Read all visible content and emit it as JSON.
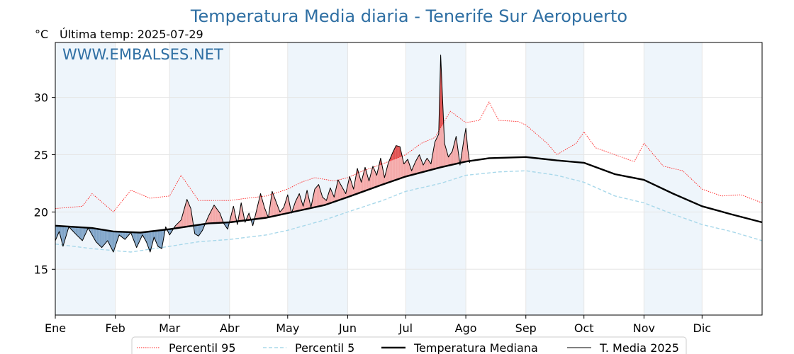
{
  "chart_data": {
    "type": "line",
    "title": "Temperatura Media diaria - Tenerife Sur Aeropuerto",
    "unit": "°C",
    "subtitle": "Última temp: 2025-07-29",
    "watermark": "WWW.EMBALSES.NET",
    "x_ticks": [
      "Ene",
      "Feb",
      "Mar",
      "Abr",
      "May",
      "Jun",
      "Jul",
      "Ago",
      "Sep",
      "Oct",
      "Nov",
      "Dic"
    ],
    "x_tick_days": [
      1,
      32,
      60,
      91,
      121,
      152,
      182,
      213,
      244,
      274,
      305,
      335
    ],
    "y_ticks": [
      15,
      20,
      25,
      30
    ],
    "ylim": [
      11,
      34.8
    ],
    "xlim": [
      1,
      366
    ],
    "grid": true,
    "legend_position": "bottom-center",
    "colors": {
      "p95": "#ff2020",
      "p5": "#a8d8ea",
      "median": "#000000",
      "media2025": "#000000",
      "above": "#f4a8a8",
      "above_strong": "#e05050",
      "below": "#7fa4c8",
      "below_strong": "#1f4e85",
      "band": "#eef5fb",
      "title": "#2f6fa3"
    },
    "series": [
      {
        "key": "p95",
        "name": "Percentil 95",
        "style": "dotted-red",
        "points": [
          [
            1,
            20.3
          ],
          [
            15,
            20.5
          ],
          [
            20,
            21.6
          ],
          [
            31,
            20.0
          ],
          [
            40,
            21.9
          ],
          [
            50,
            21.2
          ],
          [
            60,
            21.4
          ],
          [
            66,
            23.2
          ],
          [
            75,
            21.0
          ],
          [
            91,
            21.0
          ],
          [
            100,
            21.2
          ],
          [
            110,
            21.4
          ],
          [
            121,
            22.0
          ],
          [
            128,
            22.6
          ],
          [
            135,
            23.0
          ],
          [
            145,
            22.7
          ],
          [
            152,
            23.0
          ],
          [
            160,
            23.6
          ],
          [
            170,
            24.2
          ],
          [
            182,
            25.0
          ],
          [
            190,
            26.0
          ],
          [
            197,
            26.5
          ],
          [
            205,
            28.8
          ],
          [
            213,
            27.8
          ],
          [
            220,
            28.0
          ],
          [
            225,
            29.6
          ],
          [
            230,
            28.0
          ],
          [
            240,
            27.9
          ],
          [
            244,
            27.6
          ],
          [
            255,
            26.0
          ],
          [
            260,
            25.0
          ],
          [
            270,
            26.0
          ],
          [
            274,
            27.0
          ],
          [
            280,
            25.6
          ],
          [
            290,
            25.0
          ],
          [
            300,
            24.4
          ],
          [
            305,
            26.0
          ],
          [
            315,
            24.0
          ],
          [
            325,
            23.6
          ],
          [
            335,
            22.0
          ],
          [
            345,
            21.4
          ],
          [
            355,
            21.5
          ],
          [
            366,
            20.8
          ]
        ]
      },
      {
        "key": "p5",
        "name": "Percentil 5",
        "style": "dashed-lightblue",
        "points": [
          [
            1,
            17.2
          ],
          [
            20,
            16.8
          ],
          [
            40,
            16.5
          ],
          [
            60,
            17.0
          ],
          [
            75,
            17.4
          ],
          [
            91,
            17.6
          ],
          [
            110,
            18.0
          ],
          [
            121,
            18.4
          ],
          [
            140,
            19.3
          ],
          [
            152,
            20.0
          ],
          [
            170,
            21.0
          ],
          [
            182,
            21.8
          ],
          [
            200,
            22.5
          ],
          [
            213,
            23.2
          ],
          [
            230,
            23.5
          ],
          [
            244,
            23.6
          ],
          [
            260,
            23.2
          ],
          [
            274,
            22.6
          ],
          [
            290,
            21.4
          ],
          [
            305,
            20.8
          ],
          [
            320,
            19.8
          ],
          [
            335,
            18.9
          ],
          [
            350,
            18.3
          ],
          [
            366,
            17.5
          ]
        ]
      },
      {
        "key": "median",
        "name": "Temperatura Mediana",
        "style": "solid-thick-black",
        "points": [
          [
            1,
            18.8
          ],
          [
            20,
            18.6
          ],
          [
            31,
            18.3
          ],
          [
            45,
            18.2
          ],
          [
            60,
            18.5
          ],
          [
            80,
            19.0
          ],
          [
            91,
            19.1
          ],
          [
            110,
            19.5
          ],
          [
            121,
            19.9
          ],
          [
            140,
            20.6
          ],
          [
            152,
            21.3
          ],
          [
            170,
            22.4
          ],
          [
            182,
            23.1
          ],
          [
            200,
            23.9
          ],
          [
            213,
            24.4
          ],
          [
            225,
            24.7
          ],
          [
            244,
            24.8
          ],
          [
            260,
            24.5
          ],
          [
            274,
            24.3
          ],
          [
            290,
            23.3
          ],
          [
            305,
            22.8
          ],
          [
            320,
            21.6
          ],
          [
            335,
            20.5
          ],
          [
            350,
            19.8
          ],
          [
            366,
            19.1
          ]
        ]
      },
      {
        "key": "media2025",
        "name": "T. Media 2025",
        "style": "solid-thin-black",
        "points": [
          [
            1,
            17.5
          ],
          [
            3,
            18.3
          ],
          [
            5,
            17.0
          ],
          [
            8,
            18.7
          ],
          [
            12,
            18.0
          ],
          [
            15,
            17.5
          ],
          [
            18,
            18.6
          ],
          [
            22,
            17.4
          ],
          [
            25,
            16.9
          ],
          [
            28,
            17.5
          ],
          [
            31,
            16.5
          ],
          [
            34,
            18.0
          ],
          [
            37,
            17.6
          ],
          [
            40,
            18.2
          ],
          [
            43,
            16.9
          ],
          [
            46,
            18.0
          ],
          [
            48,
            17.4
          ],
          [
            50,
            16.5
          ],
          [
            52,
            17.8
          ],
          [
            54,
            17.0
          ],
          [
            56,
            16.8
          ],
          [
            58,
            18.7
          ],
          [
            60,
            18.0
          ],
          [
            63,
            18.8
          ],
          [
            66,
            19.3
          ],
          [
            69,
            21.1
          ],
          [
            71,
            20.3
          ],
          [
            73,
            18.1
          ],
          [
            75,
            17.9
          ],
          [
            77,
            18.4
          ],
          [
            80,
            19.6
          ],
          [
            83,
            20.6
          ],
          [
            86,
            19.9
          ],
          [
            88,
            19.0
          ],
          [
            90,
            18.5
          ],
          [
            93,
            20.5
          ],
          [
            95,
            18.9
          ],
          [
            97,
            20.8
          ],
          [
            99,
            19.1
          ],
          [
            101,
            19.9
          ],
          [
            103,
            18.8
          ],
          [
            105,
            20.2
          ],
          [
            107,
            21.6
          ],
          [
            109,
            20.4
          ],
          [
            111,
            19.5
          ],
          [
            113,
            21.8
          ],
          [
            115,
            20.9
          ],
          [
            117,
            20.0
          ],
          [
            119,
            20.4
          ],
          [
            121,
            21.5
          ],
          [
            123,
            19.9
          ],
          [
            125,
            20.9
          ],
          [
            127,
            21.6
          ],
          [
            129,
            20.5
          ],
          [
            131,
            21.9
          ],
          [
            133,
            20.4
          ],
          [
            135,
            22.0
          ],
          [
            137,
            22.4
          ],
          [
            139,
            21.3
          ],
          [
            141,
            21.0
          ],
          [
            143,
            22.1
          ],
          [
            145,
            21.3
          ],
          [
            147,
            22.8
          ],
          [
            149,
            22.2
          ],
          [
            151,
            21.6
          ],
          [
            153,
            23.1
          ],
          [
            155,
            22.0
          ],
          [
            157,
            23.8
          ],
          [
            159,
            22.6
          ],
          [
            161,
            23.9
          ],
          [
            163,
            22.7
          ],
          [
            165,
            24.0
          ],
          [
            167,
            23.2
          ],
          [
            169,
            24.7
          ],
          [
            171,
            23.0
          ],
          [
            173,
            24.3
          ],
          [
            175,
            25.1
          ],
          [
            177,
            25.8
          ],
          [
            179,
            25.7
          ],
          [
            181,
            24.2
          ],
          [
            183,
            24.6
          ],
          [
            185,
            23.6
          ],
          [
            187,
            24.4
          ],
          [
            189,
            25.0
          ],
          [
            191,
            24.1
          ],
          [
            193,
            24.7
          ],
          [
            195,
            24.2
          ],
          [
            197,
            26.1
          ],
          [
            199,
            26.8
          ],
          [
            200,
            33.7
          ],
          [
            202,
            26.0
          ],
          [
            204,
            24.8
          ],
          [
            206,
            25.3
          ],
          [
            208,
            26.6
          ],
          [
            210,
            24.1
          ],
          [
            212,
            26.3
          ],
          [
            213,
            27.3
          ],
          [
            214,
            25.5
          ],
          [
            215,
            24.3
          ]
        ]
      }
    ]
  }
}
